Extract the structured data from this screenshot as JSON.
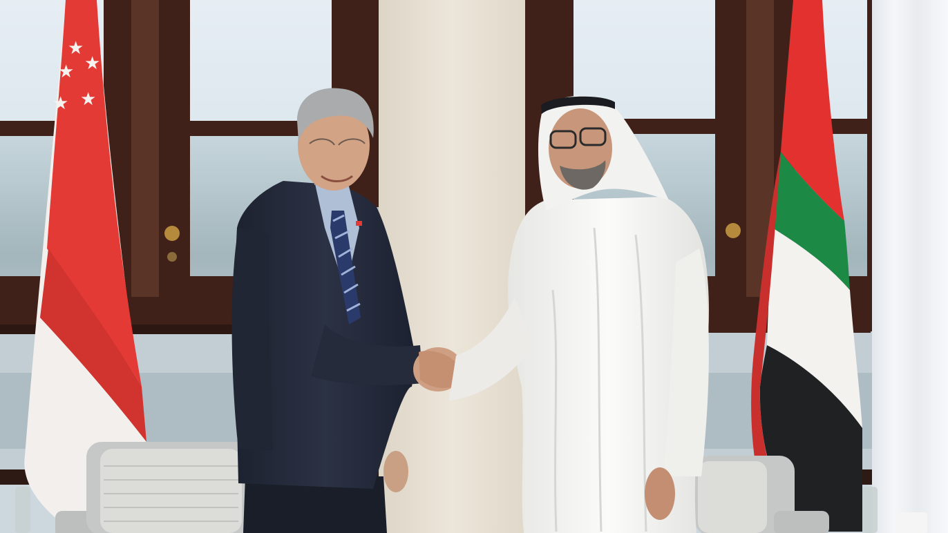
{
  "photo": {
    "subject": "two-men-handshake-between-flags",
    "flags": {
      "left": "singapore-flag",
      "right": "uae-flag"
    },
    "colors": {
      "window_frame": "#3d1f17",
      "glass_sky": "#dce7ef",
      "glass_trees": "#9fb3b9",
      "water": "#b7c4cd",
      "pillar": "#e7e0d3",
      "curtain": "#eef0f3",
      "sg_red": "#e23b36",
      "sg_white": "#f4f1ee",
      "uae_green": "#1c8a45",
      "uae_red": "#e2312f",
      "uae_black": "#1f2123",
      "suit": "#252b3a",
      "kandura": "#f4f4f2",
      "skin": "#d2a183",
      "chair": "#c9cbcb"
    }
  }
}
